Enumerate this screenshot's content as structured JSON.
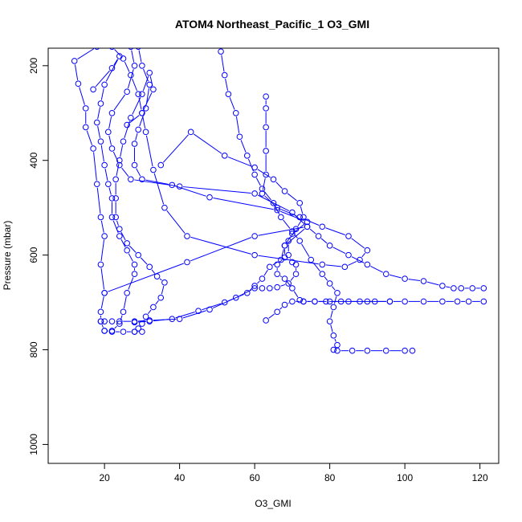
{
  "chart_data": {
    "type": "line",
    "title": "ATOM4 Northeast_Pacific_1 O3_GMI",
    "xlabel": "O3_GMI",
    "ylabel": "Pressure (mbar)",
    "xlim": [
      5,
      125
    ],
    "ylim": [
      1040,
      163
    ],
    "y_reversed": true,
    "grid": false,
    "color": "#0000ff",
    "xticks": [
      20,
      40,
      60,
      80,
      100,
      120
    ],
    "yticks": [
      200,
      400,
      600,
      800,
      1000
    ],
    "series": [
      {
        "points": [
          [
            18,
            160
          ],
          [
            12,
            190
          ],
          [
            13,
            238
          ],
          [
            15,
            290
          ],
          [
            15,
            330
          ],
          [
            17,
            375
          ],
          [
            18,
            450
          ],
          [
            19,
            520
          ],
          [
            20,
            560
          ],
          [
            19,
            620
          ],
          [
            20,
            680
          ],
          [
            19,
            720
          ],
          [
            19,
            740
          ],
          [
            20,
            760
          ],
          [
            22,
            762
          ],
          [
            25,
            762
          ],
          [
            28,
            762
          ],
          [
            30,
            762
          ]
        ]
      },
      {
        "points": [
          [
            22,
            160
          ],
          [
            25,
            185
          ],
          [
            27,
            220
          ],
          [
            29,
            260
          ],
          [
            30,
            300
          ],
          [
            31,
            340
          ],
          [
            33,
            420
          ],
          [
            36,
            500
          ],
          [
            42,
            560
          ],
          [
            60,
            600
          ],
          [
            78,
            620
          ],
          [
            84,
            625
          ],
          [
            88,
            610
          ],
          [
            90,
            590
          ],
          [
            85,
            560
          ],
          [
            78,
            540
          ],
          [
            72,
            520
          ],
          [
            66,
            500
          ],
          [
            62,
            470
          ],
          [
            63,
            430
          ],
          [
            63,
            380
          ],
          [
            63,
            330
          ],
          [
            63,
            290
          ],
          [
            63,
            265
          ]
        ]
      },
      {
        "points": [
          [
            27,
            160
          ],
          [
            28,
            200
          ],
          [
            26,
            255
          ],
          [
            22,
            300
          ],
          [
            21,
            340
          ],
          [
            22,
            375
          ],
          [
            24,
            410
          ],
          [
            27,
            440
          ],
          [
            40,
            455
          ],
          [
            60,
            470
          ],
          [
            70,
            510
          ],
          [
            74,
            540
          ],
          [
            77,
            560
          ],
          [
            80,
            580
          ],
          [
            85,
            600
          ],
          [
            90,
            620
          ],
          [
            95,
            640
          ],
          [
            100,
            650
          ],
          [
            105,
            655
          ],
          [
            110,
            665
          ],
          [
            113,
            670
          ],
          [
            115,
            670
          ],
          [
            118,
            670
          ],
          [
            121,
            670
          ]
        ]
      },
      {
        "points": [
          [
            29,
            160
          ],
          [
            30,
            200
          ],
          [
            32,
            240
          ],
          [
            31,
            290
          ],
          [
            29,
            335
          ],
          [
            28,
            365
          ],
          [
            28,
            410
          ],
          [
            30,
            440
          ],
          [
            38,
            452
          ],
          [
            48,
            478
          ],
          [
            66,
            505
          ],
          [
            74,
            530
          ],
          [
            70,
            555
          ],
          [
            68,
            580
          ],
          [
            68,
            605
          ],
          [
            66,
            620
          ],
          [
            66,
            640
          ],
          [
            68,
            650
          ],
          [
            70,
            670
          ],
          [
            72,
            695
          ],
          [
            73,
            698
          ],
          [
            76,
            698
          ],
          [
            80,
            698
          ],
          [
            85,
            698
          ],
          [
            90,
            698
          ],
          [
            96,
            698
          ],
          [
            100,
            698
          ],
          [
            105,
            698
          ],
          [
            110,
            698
          ],
          [
            114,
            698
          ],
          [
            117,
            698
          ],
          [
            121,
            698
          ]
        ]
      },
      {
        "points": [
          [
            51,
            170
          ],
          [
            52,
            220
          ],
          [
            53,
            260
          ],
          [
            55,
            300
          ],
          [
            56,
            350
          ],
          [
            58,
            390
          ],
          [
            60,
            430
          ],
          [
            62,
            460
          ],
          [
            65,
            490
          ],
          [
            67,
            520
          ],
          [
            70,
            550
          ],
          [
            72,
            570
          ],
          [
            75,
            610
          ],
          [
            78,
            640
          ],
          [
            80,
            660
          ],
          [
            82,
            680
          ],
          [
            81,
            710
          ],
          [
            80,
            740
          ],
          [
            81,
            770
          ],
          [
            82,
            790
          ],
          [
            81,
            800
          ],
          [
            82,
            802
          ],
          [
            86,
            802
          ],
          [
            90,
            802
          ],
          [
            95,
            802
          ],
          [
            100,
            802
          ],
          [
            102,
            802
          ]
        ]
      },
      {
        "points": [
          [
            35,
            410
          ],
          [
            43,
            340
          ],
          [
            52,
            390
          ],
          [
            60,
            415
          ],
          [
            65,
            440
          ],
          [
            68,
            465
          ],
          [
            72,
            490
          ],
          [
            73,
            520
          ],
          [
            71,
            545
          ],
          [
            69,
            570
          ],
          [
            69,
            600
          ],
          [
            70,
            615
          ],
          [
            71,
            620
          ],
          [
            71,
            640
          ],
          [
            69,
            660
          ],
          [
            66,
            668
          ],
          [
            64,
            670
          ],
          [
            62,
            670
          ],
          [
            60,
            670
          ],
          [
            55,
            690
          ],
          [
            48,
            715
          ],
          [
            40,
            735
          ],
          [
            32,
            738
          ],
          [
            28,
            740
          ],
          [
            24,
            740
          ],
          [
            22,
            740
          ],
          [
            20,
            740
          ],
          [
            19,
            740
          ]
        ]
      },
      {
        "points": [
          [
            17,
            250
          ],
          [
            22,
            205
          ],
          [
            24,
            180
          ],
          [
            20,
            240
          ],
          [
            19,
            280
          ],
          [
            18,
            320
          ],
          [
            19,
            360
          ],
          [
            20,
            410
          ],
          [
            21,
            450
          ],
          [
            22,
            480
          ],
          [
            22,
            520
          ],
          [
            24,
            560
          ],
          [
            26,
            590
          ],
          [
            28,
            620
          ],
          [
            28,
            640
          ],
          [
            26,
            680
          ],
          [
            25,
            720
          ],
          [
            24,
            745
          ],
          [
            22,
            760
          ],
          [
            20,
            760
          ]
        ]
      },
      {
        "points": [
          [
            20,
            680
          ],
          [
            42,
            615
          ],
          [
            60,
            560
          ],
          [
            74,
            540
          ],
          [
            68,
            580
          ],
          [
            67,
            610
          ],
          [
            64,
            625
          ],
          [
            62,
            650
          ],
          [
            60,
            665
          ],
          [
            58,
            680
          ],
          [
            52,
            700
          ],
          [
            45,
            718
          ],
          [
            38,
            735
          ],
          [
            32,
            740
          ],
          [
            28,
            742
          ]
        ]
      },
      {
        "points": [
          [
            26,
            325
          ],
          [
            30,
            300
          ],
          [
            33,
            250
          ],
          [
            32,
            215
          ],
          [
            30,
            260
          ],
          [
            27,
            310
          ],
          [
            25,
            360
          ],
          [
            24,
            400
          ],
          [
            23,
            440
          ],
          [
            23,
            480
          ],
          [
            23,
            520
          ],
          [
            24,
            545
          ],
          [
            26,
            575
          ],
          [
            29,
            600
          ],
          [
            32,
            625
          ],
          [
            34,
            645
          ],
          [
            36,
            658
          ],
          [
            35,
            690
          ],
          [
            33,
            710
          ],
          [
            31,
            730
          ],
          [
            30,
            745
          ],
          [
            29,
            755
          ],
          [
            28,
            762
          ]
        ]
      },
      {
        "points": [
          [
            63,
            738
          ],
          [
            66,
            720
          ],
          [
            68,
            705
          ],
          [
            70,
            698
          ],
          [
            73,
            698
          ],
          [
            76,
            698
          ],
          [
            79,
            698
          ],
          [
            83,
            698
          ],
          [
            88,
            698
          ],
          [
            92,
            698
          ],
          [
            96,
            698
          ]
        ]
      }
    ]
  }
}
